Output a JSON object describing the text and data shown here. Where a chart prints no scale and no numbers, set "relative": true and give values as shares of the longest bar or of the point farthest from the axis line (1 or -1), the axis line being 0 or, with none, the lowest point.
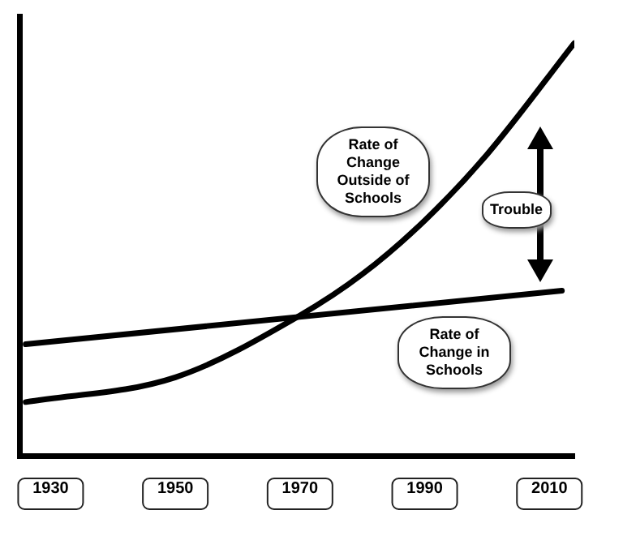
{
  "chart_data": {
    "type": "line",
    "relative": true,
    "xlim": [
      1925,
      2014
    ],
    "xticks": [
      1930,
      1950,
      1970,
      1990,
      2010
    ],
    "series": [
      {
        "name": "Rate of Change Outside of Schools",
        "color": "#000000",
        "x": [
          1926,
          1950,
          1970,
          1980,
          1990,
          2000,
          2014
        ],
        "values": [
          0.13,
          0.19,
          0.34,
          0.44,
          0.57,
          0.73,
          1
        ]
      },
      {
        "name": "Rate of Change in Schools",
        "color": "#000000",
        "x": [
          1926,
          2012
        ],
        "values": [
          0.27,
          0.4
        ]
      }
    ],
    "annotations": [
      "Trouble"
    ],
    "grid": false,
    "legend": false,
    "marker": "none",
    "line_style": "solid"
  }
}
